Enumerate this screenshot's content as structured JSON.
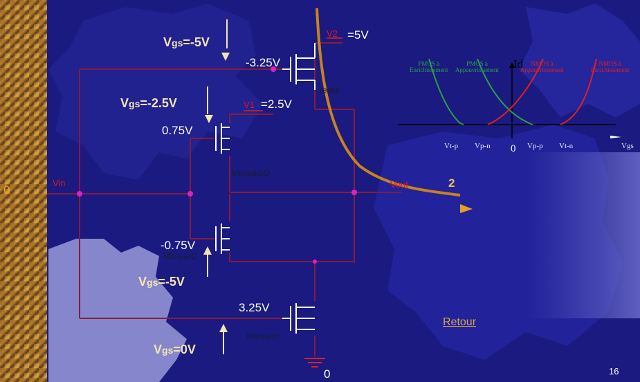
{
  "slide_number": "16",
  "retour_link": "Retour",
  "input_value": "0",
  "vin_label": "Vin",
  "vout_label": "Vout",
  "output_value": "2",
  "ground_value": "0",
  "transistors": {
    "top": {
      "name": "reakp",
      "gate_voltage": "-3.25V",
      "supply_node": "V2",
      "supply_value": "=5V"
    },
    "upper": {
      "name": "MbreakpO",
      "gate_voltage": "0.75V",
      "supply_node": "V1",
      "supply_value": "=2.5V"
    },
    "lower": {
      "name": "MbreakO",
      "gate_voltage": "-0.75V"
    },
    "bottom": {
      "name": "Mbreakn",
      "gate_voltage": "3.25V"
    }
  },
  "vgs_labels": {
    "prefix": "V",
    "sub": "gs",
    "top": "=-5V",
    "upper": "=-2.5V",
    "lower": "=-5V",
    "bottom": "=0V"
  },
  "inset_chart": {
    "y_axis_label": "Id",
    "x_axis_label": "Vgs",
    "origin_label": "0",
    "tick_labels": [
      "Vt-p",
      "Vp-n",
      "Vp-p",
      "Vt-n"
    ],
    "curves": [
      {
        "line1": "PMOS à",
        "line2": "Enrichissement",
        "color": "#2e9e4a"
      },
      {
        "line1": "PMOS à",
        "line2": "Appauvrissement",
        "color": "#2e9e4a"
      },
      {
        "line1": "NMOS à",
        "line2": "Appauvrissement",
        "color": "#e02020"
      },
      {
        "line1": "NMOS à",
        "line2": "Enrichissement",
        "color": "#e02020"
      }
    ]
  },
  "colors": {
    "background": "#1a1a80",
    "gear_dark": "#23239a",
    "gear_light": "#8a8ad0",
    "wire": "#8a1a3a",
    "junction": "#e020c0",
    "curve": "#c8821e",
    "label_cream": "#f2e6b0"
  }
}
